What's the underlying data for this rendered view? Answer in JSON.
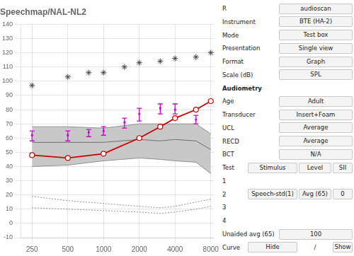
{
  "chart_data": {
    "type": "line",
    "title": "Speechmap/NAL-NL2",
    "log": "x",
    "grid": true,
    "x": [
      250,
      500,
      1000,
      2000,
      3000,
      4000,
      6000,
      8000
    ],
    "xlim": [
      200,
      8500
    ],
    "xticks": [
      250,
      500,
      1000,
      2000,
      4000,
      8000
    ],
    "ylim": [
      -10,
      140
    ],
    "yticks": [
      -10,
      0,
      10,
      20,
      30,
      40,
      50,
      60,
      70,
      80,
      90,
      100,
      110,
      120,
      130,
      140
    ],
    "series": [
      {
        "type": "band",
        "color": "#c8c8c8",
        "upper": [
          68,
          68,
          67,
          70,
          70,
          70,
          70,
          63
        ],
        "lower": [
          40,
          41,
          44,
          46,
          45,
          44,
          43,
          35
        ]
      },
      {
        "type": "line",
        "color": "#909090",
        "values": [
          68,
          68,
          67,
          70,
          70,
          70,
          70,
          63
        ]
      },
      {
        "type": "line",
        "color": "#707070",
        "values": [
          57,
          57,
          57,
          59,
          58,
          59,
          58,
          52
        ]
      },
      {
        "type": "line",
        "color": "#909090",
        "values": [
          40,
          41,
          44,
          46,
          45,
          44,
          43,
          35
        ]
      },
      {
        "type": "line",
        "color": "#909090",
        "line_style": "dotted",
        "values": [
          19,
          16,
          14,
          12,
          11,
          12,
          15,
          17
        ]
      },
      {
        "type": "line",
        "color": "#909090",
        "line_style": "dotted",
        "values": [
          11,
          10,
          9,
          8,
          7,
          8,
          10,
          12
        ]
      },
      {
        "type": "scatter",
        "color": "#404040",
        "marker": "star",
        "x": [
          250,
          500,
          750,
          1000,
          1500,
          2000,
          3000,
          4000,
          6000,
          8000
        ],
        "values": [
          97,
          103,
          106,
          106,
          110,
          113,
          114,
          116,
          117,
          120
        ]
      },
      {
        "type": "errorbar",
        "color": "#cc00cc",
        "marker": "square",
        "x": [
          250,
          500,
          750,
          1000,
          1500,
          2000,
          3000,
          4000,
          6000
        ],
        "values": [
          62,
          62,
          64,
          65,
          71,
          77,
          81,
          80,
          73
        ],
        "upper": [
          65,
          65,
          66,
          68,
          74,
          81,
          84,
          84,
          76
        ],
        "lower": [
          58,
          58,
          61,
          62,
          67,
          72,
          77,
          77,
          70
        ]
      },
      {
        "type": "line",
        "color": "#cc0000",
        "marker": "circle",
        "values": [
          48,
          46,
          49,
          60,
          68,
          74,
          80,
          86
        ]
      }
    ],
    "annotations": [
      [
        "R",
        "audioscan"
      ],
      [
        "Instrument",
        "BTE (HA-2)"
      ],
      [
        "Mode",
        "Test box"
      ],
      [
        "Presentation",
        "Single view"
      ],
      [
        "Format",
        "Graph"
      ],
      [
        "Scale (dB)",
        "SPL"
      ],
      [
        "Audiometry"
      ],
      [
        "Age",
        "Adult"
      ],
      [
        "Transducer",
        "Insert+Foam"
      ],
      [
        "UCL",
        "Average"
      ],
      [
        "RECD",
        "Average"
      ],
      [
        "BCT",
        "N/A"
      ],
      [
        "Test",
        "Stimulus",
        "Level",
        "SII"
      ],
      [
        "1"
      ],
      [
        "2",
        "Speech-std(1)",
        "Avg (65)",
        "0"
      ],
      [
        "3"
      ],
      [
        "4"
      ],
      [
        "Unaided avg (65)",
        "100"
      ],
      [
        "Curve",
        "Hide",
        "/",
        "Show"
      ]
    ]
  }
}
